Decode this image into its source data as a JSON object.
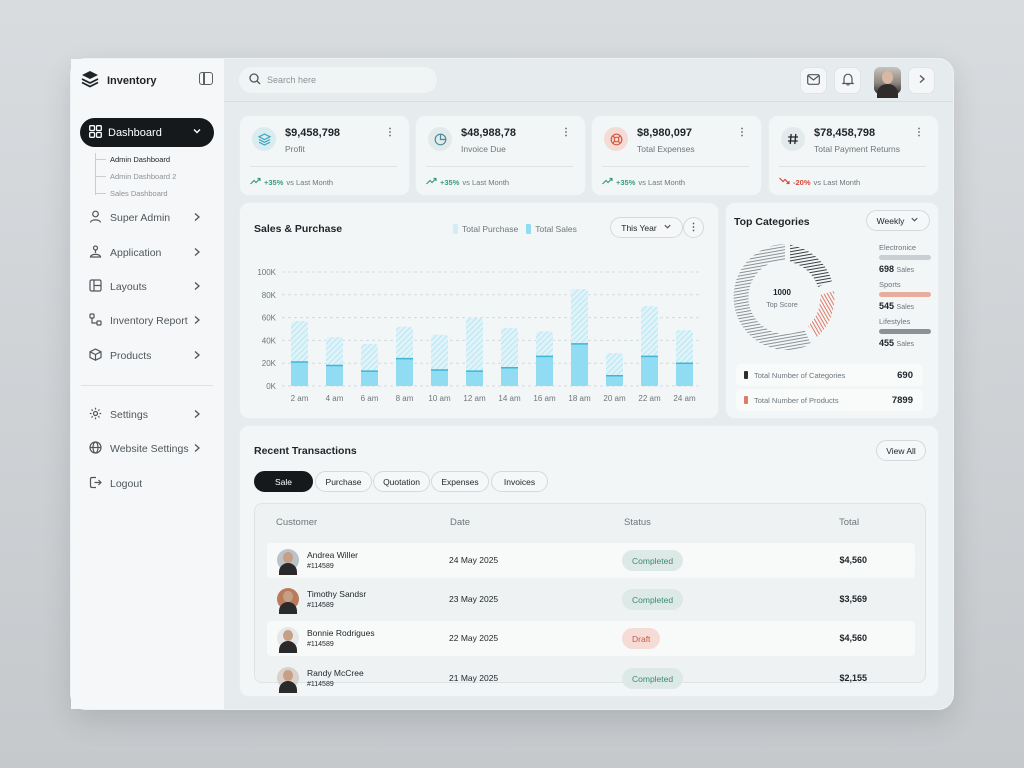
{
  "brand": {
    "name": "Inventory"
  },
  "sidebar": {
    "active": {
      "label": "Dashboard"
    },
    "subitems": [
      "Admin Dashboard",
      "Admin Dashboard 2",
      "Sales Dashboard"
    ],
    "items": [
      {
        "label": "Super Admin",
        "icon": "user-icon"
      },
      {
        "label": "Application",
        "icon": "app-icon"
      },
      {
        "label": "Layouts",
        "icon": "layout-icon"
      },
      {
        "label": "Inventory Report",
        "icon": "report-icon"
      },
      {
        "label": "Products",
        "icon": "box-icon"
      }
    ],
    "bottom": [
      {
        "label": "Settings",
        "icon": "gear-icon"
      },
      {
        "label": "Website Settings",
        "icon": "globe-icon"
      },
      {
        "label": "Logout",
        "icon": "logout-icon"
      }
    ]
  },
  "search": {
    "placeholder": "Search here"
  },
  "stats": [
    {
      "value": "$9,458,798",
      "label": "Profit",
      "change": "+35%",
      "suffix": "vs Last Month",
      "trend": "up",
      "icon": "layers-icon"
    },
    {
      "value": "$48,988,78",
      "label": "Invoice Due",
      "change": "+35%",
      "suffix": "vs Last Month",
      "trend": "up",
      "icon": "pie-icon"
    },
    {
      "value": "$8,980,097",
      "label": "Total Expenses",
      "change": "+35%",
      "suffix": "vs Last Month",
      "trend": "up",
      "icon": "lifebuoy-icon"
    },
    {
      "value": "$78,458,798",
      "label": "Total Payment Returns",
      "change": "-20%",
      "suffix": "vs Last Month",
      "trend": "down",
      "icon": "hash-icon"
    }
  ],
  "sales": {
    "title": "Sales & Purchase",
    "legend": [
      "Total Purchase",
      "Total Sales"
    ],
    "period": "This Year"
  },
  "chart_data": {
    "type": "bar",
    "categories": [
      "2 am",
      "4 am",
      "6 am",
      "8 am",
      "10 am",
      "12 am",
      "14 am",
      "16 am",
      "18 am",
      "20 am",
      "22 am",
      "24 am"
    ],
    "y_ticks": [
      "0K",
      "20K",
      "40K",
      "60K",
      "80K",
      "100K"
    ],
    "ylim": [
      0,
      100
    ],
    "series": [
      {
        "name": "Total Purchase",
        "values": [
          57,
          43,
          37,
          52,
          45,
          60,
          51,
          48,
          85,
          29,
          70,
          49
        ]
      },
      {
        "name": "Total Sales",
        "values": [
          21,
          18,
          13,
          24,
          14,
          13,
          16,
          26,
          37,
          9,
          26,
          20
        ]
      }
    ],
    "colors": {
      "purchase": "#cfeef6",
      "sales": "#8fdcf3"
    },
    "grid": true
  },
  "categories": {
    "title": "Top Categories",
    "period": "Weekly",
    "score": "1000",
    "score_label": "Top Score",
    "list": [
      {
        "name": "Electronice",
        "value": "698",
        "unit": "Sales",
        "color": "#c9cfd2"
      },
      {
        "name": "Sports",
        "value": "545",
        "unit": "Sales",
        "color": "#e8ad9c"
      },
      {
        "name": "Lifestyles",
        "value": "455",
        "unit": "Sales",
        "color": "#8b9296"
      }
    ],
    "totals": [
      {
        "label": "Total Number of Categories",
        "value": "690",
        "color": "#2a2e31"
      },
      {
        "label": "Total Number of Products",
        "value": "7899",
        "color": "#e07a67"
      }
    ]
  },
  "transactions": {
    "title": "Recent Transactions",
    "view_all": "View All",
    "tabs": [
      "Sale",
      "Purchase",
      "Quotation",
      "Expenses",
      "Invoices"
    ],
    "columns": [
      "Customer",
      "Date",
      "Status",
      "Total"
    ],
    "rows": [
      {
        "name": "Andrea Willer",
        "id": "#114589",
        "date": "24 May 2025",
        "status": "Completed",
        "total": "$4,560"
      },
      {
        "name": "Timothy Sandsr",
        "id": "#114589",
        "date": "23 May 2025",
        "status": "Completed",
        "total": "$3,569"
      },
      {
        "name": "Bonnie Rodrigues",
        "id": "#114589",
        "date": "22 May 2025",
        "status": "Draft",
        "total": "$4,560"
      },
      {
        "name": "Randy McCree",
        "id": "#114589",
        "date": "21 May 2025",
        "status": "Completed",
        "total": "$2,155"
      }
    ]
  }
}
